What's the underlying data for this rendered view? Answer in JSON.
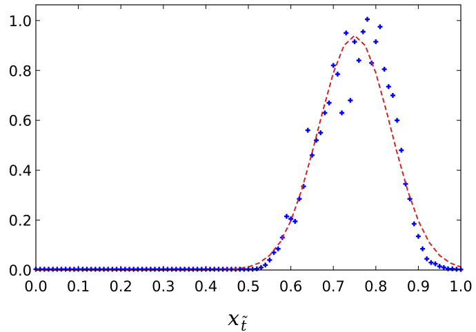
{
  "chart_data": {
    "type": "scatter",
    "xlabel": "x",
    "xlabel_subscript": "t̃",
    "xlim": [
      0,
      1
    ],
    "ylim": [
      0,
      1.063
    ],
    "xticks": [
      {
        "value": 0,
        "label": "0.0"
      },
      0.1,
      0.2,
      0.3,
      0.4,
      0.5,
      0.6,
      0.7,
      0.8,
      0.9,
      {
        "value": 1,
        "label": "1.0"
      }
    ],
    "yticks": [
      {
        "value": 0,
        "label": "0.0"
      },
      0.2,
      0.4,
      0.6,
      0.8,
      {
        "value": 1,
        "label": "1.0"
      }
    ],
    "grid": false,
    "series": [
      {
        "style": "markers",
        "color": "#0000ff",
        "x": [
          0,
          0.01,
          0.02,
          0.03,
          0.04,
          0.05,
          0.06,
          0.07,
          0.08,
          0.09,
          0.1,
          0.11,
          0.12,
          0.13,
          0.14,
          0.15,
          0.16,
          0.17,
          0.18,
          0.19,
          0.2,
          0.21,
          0.22,
          0.23,
          0.24,
          0.25,
          0.26,
          0.27,
          0.28,
          0.29,
          0.3,
          0.31,
          0.32,
          0.33,
          0.34,
          0.35,
          0.36,
          0.37,
          0.38,
          0.39,
          0.4,
          0.41,
          0.42,
          0.43,
          0.44,
          0.45,
          0.46,
          0.47,
          0.48,
          0.49,
          0.5,
          0.51,
          0.52,
          0.53,
          0.54,
          0.55,
          0.56,
          0.57,
          0.58,
          0.59,
          0.6,
          0.61,
          0.62,
          0.63,
          0.64,
          0.65,
          0.66,
          0.67,
          0.68,
          0.69,
          0.7,
          0.71,
          0.72,
          0.73,
          0.74,
          0.75,
          0.76,
          0.77,
          0.78,
          0.79,
          0.8,
          0.81,
          0.82,
          0.83,
          0.84,
          0.85,
          0.86,
          0.87,
          0.88,
          0.89,
          0.9,
          0.91,
          0.92,
          0.93,
          0.94,
          0.95,
          0.96,
          0.97,
          0.98,
          0.99,
          1
        ],
        "values": [
          0.003,
          0.003,
          0.003,
          0.003,
          0.003,
          0.003,
          0.003,
          0.003,
          0.003,
          0.003,
          0.003,
          0.003,
          0.003,
          0.003,
          0.003,
          0.003,
          0.003,
          0.003,
          0.003,
          0.003,
          0.003,
          0.003,
          0.003,
          0.003,
          0.003,
          0.003,
          0.003,
          0.003,
          0.003,
          0.003,
          0.003,
          0.003,
          0.003,
          0.003,
          0.003,
          0.003,
          0.003,
          0.003,
          0.003,
          0.003,
          0.003,
          0.003,
          0.003,
          0.003,
          0.003,
          0.003,
          0.003,
          0.003,
          0.003,
          0.003,
          0.003,
          0.003,
          0.005,
          0.01,
          0.02,
          0.04,
          0.07,
          0.085,
          0.13,
          0.215,
          0.205,
          0.195,
          0.285,
          0.335,
          0.56,
          0.46,
          0.52,
          0.55,
          0.63,
          0.67,
          0.82,
          0.785,
          0.63,
          0.95,
          0.68,
          0.915,
          0.84,
          0.955,
          1.005,
          0.83,
          0.915,
          0.975,
          0.805,
          0.735,
          0.7,
          0.6,
          0.48,
          0.345,
          0.285,
          0.185,
          0.135,
          0.085,
          0.045,
          0.03,
          0.025,
          0.015,
          0.01,
          0.005,
          0.005,
          0.003,
          0.002
        ]
      },
      {
        "style": "dashed",
        "color": "#d62020",
        "x": [
          0,
          0.1,
          0.2,
          0.3,
          0.4,
          0.45,
          0.475,
          0.5,
          0.525,
          0.55,
          0.575,
          0.6,
          0.625,
          0.65,
          0.675,
          0.7,
          0.725,
          0.75,
          0.775,
          0.8,
          0.825,
          0.85,
          0.875,
          0.9,
          0.925,
          0.95,
          0.975,
          1
        ],
        "values": [
          0,
          0,
          0,
          0,
          0,
          0.0018,
          0.0049,
          0.0122,
          0.0279,
          0.0584,
          0.112,
          0.197,
          0.318,
          0.47,
          0.636,
          0.79,
          0.9,
          0.94,
          0.9,
          0.79,
          0.636,
          0.47,
          0.318,
          0.197,
          0.112,
          0.0584,
          0.0279,
          0.0122
        ]
      }
    ]
  }
}
